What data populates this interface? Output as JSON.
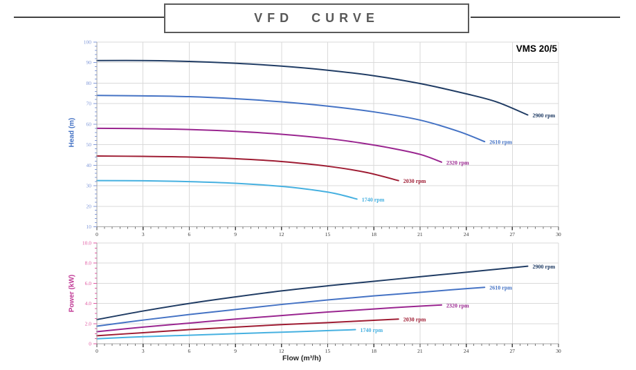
{
  "page": {
    "title": "VFD CURVE",
    "model": "VMS 20/5"
  },
  "colors": {
    "title_text": "#595959",
    "box_border": "#595959",
    "rule_line": "#404040",
    "grid": "#d9d9d9",
    "axis_line": "#a6a6a6",
    "x_tick": "#404040",
    "x_tick_labels": "#333333",
    "head_axis_title": "#4472c4",
    "head_tick_labels": "#8098d8",
    "power_axis_title": "#c13a96",
    "power_tick_labels": "#e0559f"
  },
  "chart_data": [
    {
      "type": "line",
      "title": "VMS 20/5",
      "xlabel": "",
      "ylabel": "Head (m)",
      "xlim": [
        0,
        30
      ],
      "ylim": [
        10,
        100
      ],
      "x_tick_step": 3,
      "x_minor_step": 0.5,
      "y_tick_step": 10,
      "y_minor_step": 2,
      "y_decimals": 0,
      "grid": true,
      "legend_position": "end-of-line",
      "series": [
        {
          "name": "2900 rpm",
          "color": "#1f3b63",
          "points": [
            [
              0,
              91
            ],
            [
              3,
              91
            ],
            [
              6,
              90.6
            ],
            [
              9,
              89.7
            ],
            [
              12,
              88.3
            ],
            [
              15,
              86.3
            ],
            [
              18,
              83.6
            ],
            [
              21,
              79.8
            ],
            [
              24,
              74.8
            ],
            [
              26,
              70.8
            ],
            [
              28,
              64.5
            ]
          ]
        },
        {
          "name": "2610 rpm",
          "color": "#4472c4",
          "points": [
            [
              0,
              74
            ],
            [
              3,
              73.8
            ],
            [
              6,
              73.4
            ],
            [
              9,
              72.4
            ],
            [
              12,
              70.9
            ],
            [
              15,
              68.8
            ],
            [
              18,
              66
            ],
            [
              21,
              62
            ],
            [
              23.5,
              56.5
            ],
            [
              25.2,
              51.5
            ]
          ]
        },
        {
          "name": "2320 rpm",
          "color": "#99248f",
          "points": [
            [
              0,
              58
            ],
            [
              3,
              57.8
            ],
            [
              6,
              57.4
            ],
            [
              9,
              56.5
            ],
            [
              12,
              55.1
            ],
            [
              15,
              53
            ],
            [
              17,
              51
            ],
            [
              19,
              48.5
            ],
            [
              21,
              45.3
            ],
            [
              22.4,
              41.5
            ]
          ]
        },
        {
          "name": "2030 rpm",
          "color": "#9e1b32",
          "points": [
            [
              0,
              44.5
            ],
            [
              3,
              44.3
            ],
            [
              6,
              44
            ],
            [
              9,
              43.2
            ],
            [
              12,
              41.8
            ],
            [
              15,
              39.5
            ],
            [
              17.5,
              36.5
            ],
            [
              19.6,
              32.5
            ]
          ]
        },
        {
          "name": "1740 rpm",
          "color": "#45b0e0",
          "points": [
            [
              0,
              32.5
            ],
            [
              3,
              32.4
            ],
            [
              6,
              32
            ],
            [
              9,
              31.2
            ],
            [
              12,
              29.7
            ],
            [
              14,
              28
            ],
            [
              15.5,
              26.2
            ],
            [
              16.9,
              23.5
            ]
          ]
        }
      ]
    },
    {
      "type": "line",
      "title": "",
      "xlabel": "Flow (m³/h)",
      "ylabel": "Power (kW)",
      "xlim": [
        0,
        30
      ],
      "ylim": [
        0,
        10
      ],
      "x_tick_step": 3,
      "x_minor_step": 0.5,
      "y_tick_step": 2,
      "y_minor_step": 0.5,
      "y_decimals": 1,
      "grid": true,
      "legend_position": "end-of-line",
      "series": [
        {
          "name": "2900 rpm",
          "color": "#1f3b63",
          "points": [
            [
              0,
              2.4
            ],
            [
              3,
              3.25
            ],
            [
              6,
              4.0
            ],
            [
              9,
              4.65
            ],
            [
              12,
              5.25
            ],
            [
              15,
              5.75
            ],
            [
              18,
              6.2
            ],
            [
              21,
              6.65
            ],
            [
              24,
              7.1
            ],
            [
              26,
              7.4
            ],
            [
              28,
              7.7
            ]
          ]
        },
        {
          "name": "2610 rpm",
          "color": "#4472c4",
          "points": [
            [
              0,
              1.75
            ],
            [
              3,
              2.35
            ],
            [
              6,
              2.9
            ],
            [
              9,
              3.4
            ],
            [
              12,
              3.9
            ],
            [
              15,
              4.35
            ],
            [
              18,
              4.75
            ],
            [
              21,
              5.1
            ],
            [
              23,
              5.35
            ],
            [
              25.2,
              5.6
            ]
          ]
        },
        {
          "name": "2320 rpm",
          "color": "#99248f",
          "points": [
            [
              0,
              1.2
            ],
            [
              3,
              1.65
            ],
            [
              6,
              2.05
            ],
            [
              9,
              2.45
            ],
            [
              12,
              2.8
            ],
            [
              15,
              3.15
            ],
            [
              18,
              3.45
            ],
            [
              20,
              3.65
            ],
            [
              22.4,
              3.85
            ]
          ]
        },
        {
          "name": "2030 rpm",
          "color": "#9e1b32",
          "points": [
            [
              0,
              0.8
            ],
            [
              3,
              1.1
            ],
            [
              6,
              1.4
            ],
            [
              9,
              1.65
            ],
            [
              12,
              1.9
            ],
            [
              15,
              2.1
            ],
            [
              17,
              2.25
            ],
            [
              19.6,
              2.45
            ]
          ]
        },
        {
          "name": "1740 rpm",
          "color": "#45b0e0",
          "points": [
            [
              0,
              0.5
            ],
            [
              3,
              0.7
            ],
            [
              6,
              0.85
            ],
            [
              9,
              1.0
            ],
            [
              12,
              1.15
            ],
            [
              14,
              1.25
            ],
            [
              16.8,
              1.4
            ]
          ]
        }
      ]
    }
  ]
}
